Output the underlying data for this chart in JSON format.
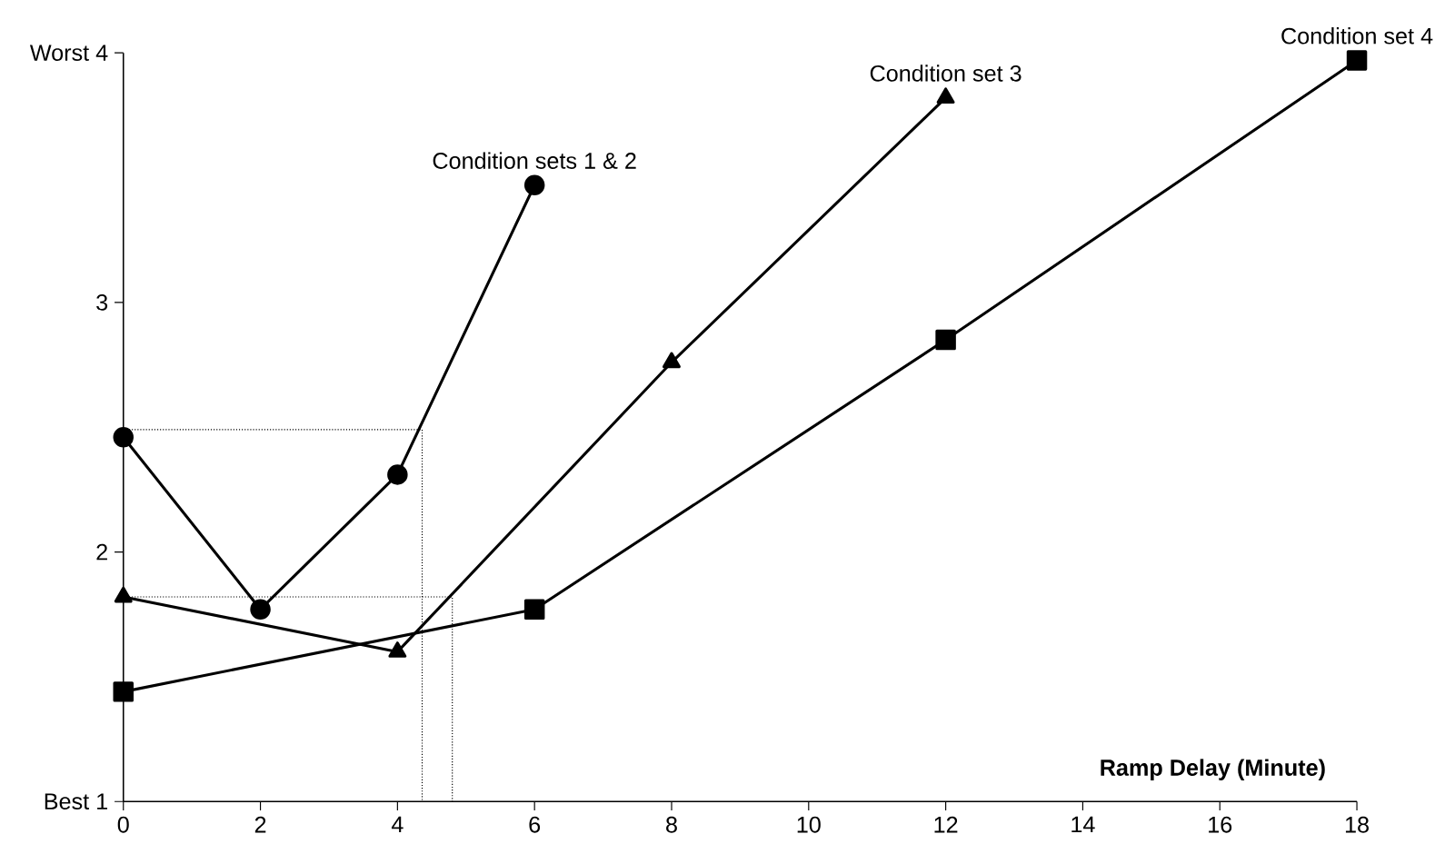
{
  "chart_data": {
    "type": "line",
    "xlabel": "Ramp Delay (Minute)",
    "xlim": [
      0,
      18
    ],
    "xticks": [
      0,
      2,
      4,
      6,
      8,
      10,
      12,
      14,
      16,
      18
    ],
    "ylim": [
      1,
      4
    ],
    "yticks": [
      {
        "value": 1,
        "label": "Best 1"
      },
      2,
      3,
      {
        "value": 4,
        "label": "Worst 4"
      }
    ],
    "series": [
      {
        "name": "Condition sets 1 & 2",
        "color": "#000000",
        "marker": "circle",
        "line_style": "solid",
        "x": [
          0,
          2,
          4,
          6
        ],
        "values": [
          2.46,
          1.77,
          2.31,
          3.47
        ]
      },
      {
        "name": "Condition set 3",
        "color": "#000000",
        "marker": "triangle",
        "line_style": "solid",
        "x": [
          0,
          4,
          8,
          12
        ],
        "values": [
          1.82,
          1.6,
          2.76,
          3.82
        ]
      },
      {
        "name": "Condition set 4",
        "color": "#000000",
        "marker": "square",
        "line_style": "solid",
        "x": [
          0,
          6,
          12,
          18
        ],
        "values": [
          1.44,
          1.77,
          2.85,
          3.97
        ]
      },
      {
        "color": "#000000",
        "marker": "none",
        "line_style": "dotted",
        "x": [
          0,
          4.36,
          4.36
        ],
        "values": [
          2.49,
          2.49,
          1
        ]
      },
      {
        "color": "#000000",
        "marker": "none",
        "line_style": "dotted",
        "x": [
          0,
          4.8,
          4.8
        ],
        "values": [
          1.82,
          1.82,
          1
        ]
      }
    ]
  }
}
